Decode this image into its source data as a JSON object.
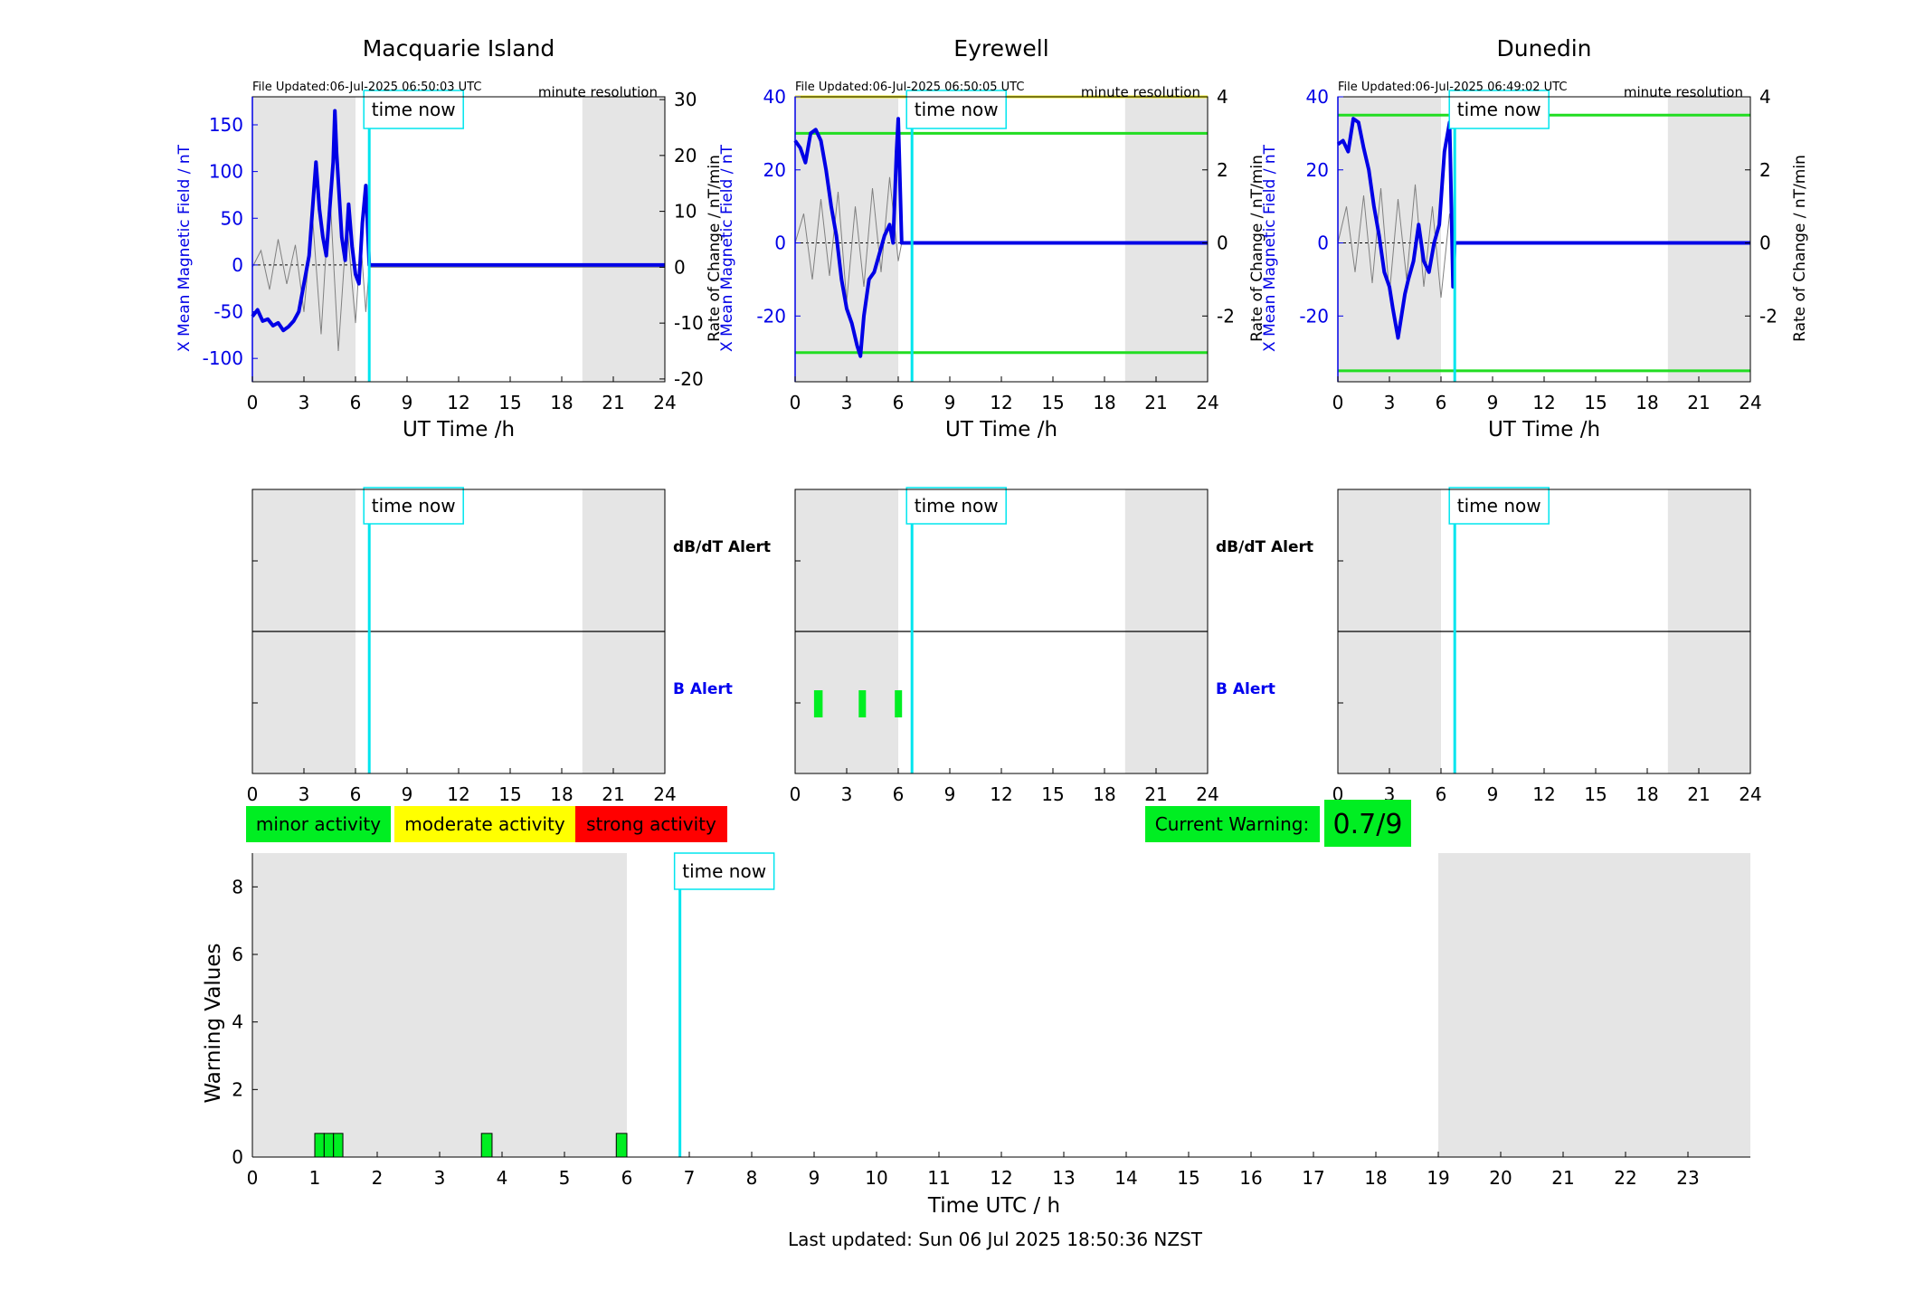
{
  "colors": {
    "shade": "#e5e5e5",
    "now_line": "#00e5ee",
    "series_b": "#0000e6",
    "series_dbdt": "#808080",
    "threshold_green": "#22dd22",
    "threshold_yellow": "#f2ee2a",
    "minor": "#00ee22",
    "moderate": "#ffff00",
    "strong": "#ff0000",
    "b_alert_label": "#0000ee"
  },
  "stations": [
    {
      "title": "Macquarie Island",
      "file_updated": "File Updated:06-Jul-2025 06:50:03 UTC",
      "resolution": "minute resolution",
      "time_now_label": "time now",
      "ylabel_left": "X Mean Magnetic Field / nT",
      "ylabel_right": "Rate of Change / nT/min",
      "xlabel": "UT Time /h",
      "x_ticks": [
        "0",
        "3",
        "6",
        "9",
        "12",
        "15",
        "18",
        "21",
        "24"
      ],
      "y_left_ticks": [
        {
          "v": -100,
          "label": "-100"
        },
        {
          "v": -50,
          "label": "-50"
        },
        {
          "v": 0,
          "label": "0"
        },
        {
          "v": 50,
          "label": "50"
        },
        {
          "v": 100,
          "label": "100"
        },
        {
          "v": 150,
          "label": "150"
        }
      ],
      "y_right_ticks": [
        {
          "v": -20,
          "label": "-20"
        },
        {
          "v": -10,
          "label": "-10"
        },
        {
          "v": 0,
          "label": "0"
        },
        {
          "v": 10,
          "label": "10"
        },
        {
          "v": 20,
          "label": "20"
        },
        {
          "v": 30,
          "label": "30"
        }
      ]
    },
    {
      "title": "Eyrewell",
      "file_updated": "File Updated:06-Jul-2025 06:50:05 UTC",
      "resolution": "minute resolution",
      "time_now_label": "time now",
      "ylabel_left": "X Mean Magnetic Field / nT",
      "ylabel_right": "Rate of Change / nT/min",
      "xlabel": "UT Time /h",
      "x_ticks": [
        "0",
        "3",
        "6",
        "9",
        "12",
        "15",
        "18",
        "21",
        "24"
      ],
      "y_left_ticks": [
        {
          "v": -20,
          "label": "-20"
        },
        {
          "v": 0,
          "label": "0"
        },
        {
          "v": 20,
          "label": "20"
        },
        {
          "v": 40,
          "label": "40"
        }
      ],
      "y_right_ticks": [
        {
          "v": -2,
          "label": "-2"
        },
        {
          "v": 0,
          "label": "0"
        },
        {
          "v": 2,
          "label": "2"
        },
        {
          "v": 4,
          "label": "4"
        }
      ]
    },
    {
      "title": "Dunedin",
      "file_updated": "File Updated:06-Jul-2025 06:49:02 UTC",
      "resolution": "minute resolution",
      "time_now_label": "time now",
      "ylabel_left": "X Mean Magnetic Field / nT",
      "ylabel_right": "Rate of Change / nT/min",
      "xlabel": "UT Time /h",
      "x_ticks": [
        "0",
        "3",
        "6",
        "9",
        "12",
        "15",
        "18",
        "21",
        "24"
      ],
      "y_left_ticks": [
        {
          "v": -20,
          "label": "-20"
        },
        {
          "v": 0,
          "label": "0"
        },
        {
          "v": 20,
          "label": "20"
        },
        {
          "v": 40,
          "label": "40"
        }
      ],
      "y_right_ticks": [
        {
          "v": -2,
          "label": "-2"
        },
        {
          "v": 0,
          "label": "0"
        },
        {
          "v": 2,
          "label": "2"
        },
        {
          "v": 4,
          "label": "4"
        }
      ]
    }
  ],
  "alerts": {
    "dbdt_label": "dB/dT Alert",
    "b_label": "B Alert",
    "time_now_label": "time now",
    "x_ticks": [
      "0",
      "3",
      "6",
      "9",
      "12",
      "15",
      "18",
      "21",
      "24"
    ]
  },
  "legend": {
    "minor": "minor activity",
    "moderate": "moderate activity",
    "strong": "strong activity"
  },
  "current_warning": {
    "label": "Current Warning:",
    "value": "0.7/9"
  },
  "warning_chart": {
    "ylabel": "Warning Values",
    "xlabel": "Time UTC / h",
    "time_now_label": "time now",
    "x_ticks": [
      "0",
      "1",
      "2",
      "3",
      "4",
      "5",
      "6",
      "7",
      "8",
      "9",
      "10",
      "11",
      "12",
      "13",
      "14",
      "15",
      "16",
      "17",
      "18",
      "19",
      "20",
      "21",
      "22",
      "23"
    ],
    "y_ticks": [
      "0",
      "2",
      "4",
      "6",
      "8"
    ]
  },
  "footer": "Last updated: Sun 06 Jul 2025 18:50:36 NZST",
  "chart_data": [
    {
      "type": "line",
      "title": "Macquarie Island",
      "xlabel": "UT Time /h",
      "ylabel": "X Mean Magnetic Field / nT",
      "y2label": "Rate of Change / nT/min",
      "xlim": [
        0,
        24
      ],
      "ylim": [
        -125,
        180
      ],
      "y2lim": [
        -20.5,
        30.5
      ],
      "shade_ranges": [
        [
          0,
          6
        ],
        [
          19.2,
          24
        ]
      ],
      "time_now": 6.8,
      "series": [
        {
          "name": "X Mean Magnetic Field / nT",
          "axis": "left",
          "x": [
            0,
            0.3,
            0.6,
            0.9,
            1.2,
            1.5,
            1.8,
            2.1,
            2.4,
            2.7,
            3.0,
            3.3,
            3.5,
            3.7,
            3.9,
            4.1,
            4.3,
            4.5,
            4.7,
            4.8,
            4.9,
            5.0,
            5.2,
            5.4,
            5.6,
            5.8,
            6.0,
            6.2,
            6.4,
            6.6,
            6.8,
            7,
            9,
            12,
            15,
            18,
            21,
            24
          ],
          "y": [
            -55,
            -48,
            -60,
            -58,
            -65,
            -62,
            -70,
            -66,
            -60,
            -50,
            -20,
            10,
            60,
            110,
            60,
            30,
            10,
            60,
            110,
            165,
            120,
            90,
            30,
            5,
            65,
            20,
            -10,
            -20,
            45,
            85,
            0,
            0,
            0,
            0,
            0,
            0,
            0,
            0
          ]
        },
        {
          "name": "Rate of Change / nT/min",
          "axis": "right",
          "x": [
            0,
            0.5,
            1,
            1.5,
            2,
            2.5,
            3,
            3.5,
            4,
            4.5,
            5,
            5.5,
            6,
            6.3,
            6.6,
            6.8,
            7,
            12,
            18,
            24
          ],
          "y": [
            0,
            3,
            -4,
            5,
            -3,
            4,
            -8,
            9,
            -12,
            14,
            -15,
            8,
            -10,
            5,
            -8,
            0,
            0,
            0,
            0,
            0
          ]
        }
      ],
      "hlines": []
    },
    {
      "type": "line",
      "title": "Eyrewell",
      "xlabel": "UT Time /h",
      "ylabel": "X Mean Magnetic Field / nT",
      "y2label": "Rate of Change / nT/min",
      "xlim": [
        0,
        24
      ],
      "ylim": [
        -38,
        40
      ],
      "y2lim": [
        -3.8,
        4.0
      ],
      "shade_ranges": [
        [
          0,
          6
        ],
        [
          19.2,
          24
        ]
      ],
      "time_now": 6.8,
      "series": [
        {
          "name": "X Mean Magnetic Field / nT",
          "axis": "left",
          "x": [
            0,
            0.3,
            0.6,
            0.9,
            1.2,
            1.5,
            1.8,
            2.1,
            2.4,
            2.7,
            3.0,
            3.3,
            3.6,
            3.8,
            4.0,
            4.3,
            4.6,
            4.9,
            5.2,
            5.5,
            5.7,
            5.9,
            6.0,
            6.2,
            6.8,
            7,
            12,
            18,
            24
          ],
          "y": [
            28,
            26,
            22,
            30,
            31,
            28,
            20,
            10,
            2,
            -10,
            -18,
            -22,
            -28,
            -31,
            -20,
            -10,
            -8,
            -3,
            2,
            5,
            0,
            25,
            34,
            0,
            0,
            0,
            0,
            0,
            0
          ]
        },
        {
          "name": "Rate of Change / nT/min",
          "axis": "right",
          "x": [
            0,
            0.5,
            1,
            1.5,
            2,
            2.5,
            3,
            3.5,
            4,
            4.5,
            5,
            5.5,
            6,
            6.2,
            7,
            12,
            18,
            24
          ],
          "y": [
            0,
            0.8,
            -1.0,
            1.2,
            -0.9,
            1.4,
            -1.6,
            1.0,
            -1.2,
            1.5,
            -0.8,
            1.8,
            -0.5,
            0,
            0,
            0,
            0,
            0
          ]
        }
      ],
      "hlines": [
        {
          "axis": "right",
          "value": 4.0,
          "color": "yellow"
        },
        {
          "axis": "right",
          "value": 3.0,
          "color": "green"
        },
        {
          "axis": "right",
          "value": -3.0,
          "color": "green"
        }
      ]
    },
    {
      "type": "line",
      "title": "Dunedin",
      "xlabel": "UT Time /h",
      "ylabel": "X Mean Magnetic Field / nT",
      "y2label": "Rate of Change / nT/min",
      "xlim": [
        0,
        24
      ],
      "ylim": [
        -38,
        40
      ],
      "y2lim": [
        -3.8,
        4.0
      ],
      "shade_ranges": [
        [
          0,
          6
        ],
        [
          19.2,
          24
        ]
      ],
      "time_now": 6.8,
      "series": [
        {
          "name": "X Mean Magnetic Field / nT",
          "axis": "left",
          "x": [
            0,
            0.3,
            0.6,
            0.9,
            1.2,
            1.5,
            1.8,
            2.1,
            2.4,
            2.7,
            3.0,
            3.2,
            3.5,
            3.7,
            3.9,
            4.1,
            4.4,
            4.7,
            5.0,
            5.3,
            5.6,
            5.9,
            6.2,
            6.5,
            6.7,
            6.8,
            7,
            12,
            18,
            24
          ],
          "y": [
            27,
            28,
            25,
            34,
            33,
            26,
            20,
            10,
            2,
            -8,
            -12,
            -18,
            -26,
            -20,
            -14,
            -10,
            -5,
            5,
            -5,
            -8,
            0,
            5,
            25,
            33,
            -12,
            0,
            0,
            0,
            0,
            0
          ]
        },
        {
          "name": "Rate of Change / nT/min",
          "axis": "right",
          "x": [
            0,
            0.5,
            1,
            1.5,
            2,
            2.5,
            3,
            3.5,
            4,
            4.5,
            5,
            5.5,
            6,
            6.5,
            6.8,
            7,
            12,
            18,
            24
          ],
          "y": [
            0,
            1.0,
            -0.8,
            1.3,
            -1.1,
            1.5,
            -1.4,
            1.2,
            -1.0,
            1.6,
            -1.2,
            1.0,
            -1.5,
            0.8,
            0,
            0,
            0,
            0,
            0
          ]
        }
      ],
      "hlines": [
        {
          "axis": "right",
          "value": 3.5,
          "color": "green"
        },
        {
          "axis": "right",
          "value": -3.5,
          "color": "green"
        }
      ]
    },
    {
      "type": "bar",
      "title": "B Alert (Eyrewell)",
      "xlim": [
        0,
        24
      ],
      "bars": [
        {
          "start": 1.1,
          "end": 1.6
        },
        {
          "start": 3.7,
          "end": 4.0
        },
        {
          "start": 5.8,
          "end": 6.1
        }
      ]
    },
    {
      "type": "bar",
      "title": "Warning Values",
      "xlabel": "Time UTC / h",
      "ylabel": "Warning Values",
      "xlim": [
        0,
        24
      ],
      "ylim": [
        0,
        9
      ],
      "shade_ranges": [
        [
          0,
          6
        ],
        [
          19,
          24
        ]
      ],
      "time_now": 6.85,
      "bars": [
        {
          "x": 1.0,
          "width": 0.15,
          "value": 0.7
        },
        {
          "x": 1.15,
          "width": 0.15,
          "value": 0.7
        },
        {
          "x": 1.3,
          "width": 0.15,
          "value": 0.7
        },
        {
          "x": 3.67,
          "width": 0.17,
          "value": 0.7
        },
        {
          "x": 5.83,
          "width": 0.17,
          "value": 0.7
        }
      ]
    }
  ]
}
